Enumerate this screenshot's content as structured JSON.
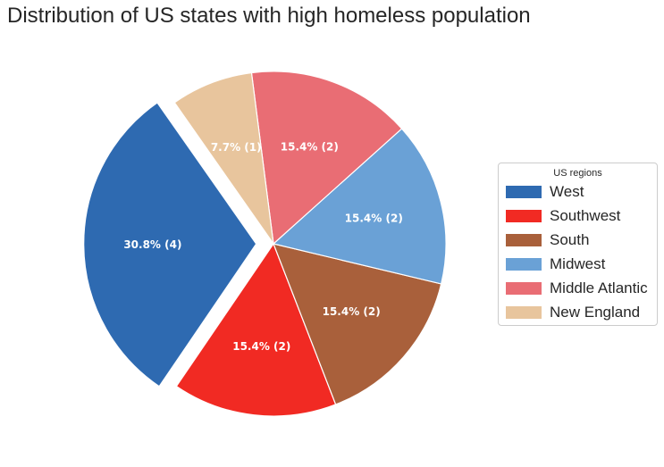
{
  "chart_data": {
    "type": "pie",
    "title": "Distribution of US states with high homeless population",
    "legend_title": "US regions",
    "legend_position": "right",
    "slices": [
      {
        "name": "West",
        "value": 4,
        "label": "30.8% (4)",
        "color": "#2e6ab1",
        "explode": true
      },
      {
        "name": "Southwest",
        "value": 2,
        "label": "15.4% (2)",
        "color": "#f12a23",
        "explode": false
      },
      {
        "name": "South",
        "value": 2,
        "label": "15.4% (2)",
        "color": "#a9603b",
        "explode": false
      },
      {
        "name": "Midwest",
        "value": 2,
        "label": "15.4% (2)",
        "color": "#6aa1d6",
        "explode": false
      },
      {
        "name": "Middle Atlantic",
        "value": 2,
        "label": "15.4% (2)",
        "color": "#e96d74",
        "explode": false
      },
      {
        "name": "New England",
        "value": 1,
        "label": "7.7% (1)",
        "color": "#e8c59d",
        "explode": false
      }
    ]
  }
}
